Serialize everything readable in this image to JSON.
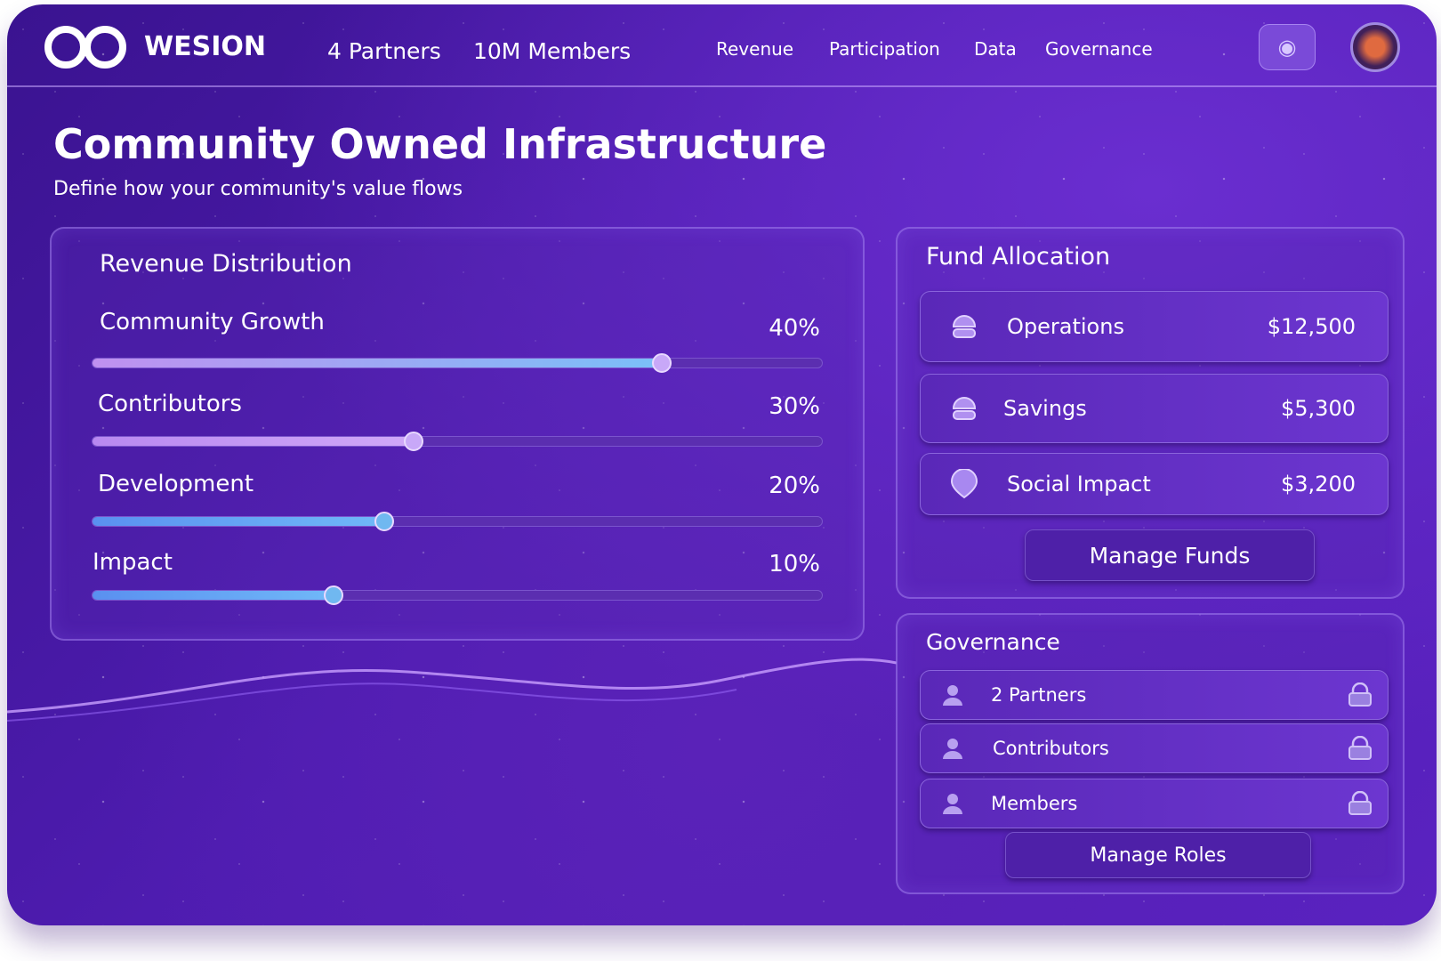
{
  "header": {
    "brand": "WESION",
    "stats": [
      "4 Partners",
      "10M Members"
    ],
    "nav": [
      "Revenue",
      "Participation",
      "Data",
      "Governance"
    ],
    "icons": {
      "action": "lightbulb-icon",
      "avatar": "user-avatar"
    }
  },
  "page": {
    "title": "Community Owned Infrastructure",
    "subtitle": "Define how your community's value flows"
  },
  "revenue": {
    "title": "Revenue Distribution",
    "sliders": [
      {
        "label": "Community Growth",
        "value": "40%",
        "percent": 40
      },
      {
        "label": "Contributors",
        "value": "30%",
        "percent": 30
      },
      {
        "label": "Development",
        "value": "20%",
        "percent": 20
      },
      {
        "label": "Impact",
        "value": "10%",
        "percent": 10
      }
    ]
  },
  "funds": {
    "title": "Fund Allocation",
    "items": [
      {
        "label": "Operations",
        "amount": "$12,500",
        "icon": "coin-stack-icon"
      },
      {
        "label": "Savings",
        "amount": "$5,300",
        "icon": "coin-stack-icon"
      },
      {
        "label": "Social Impact",
        "amount": "$3,200",
        "icon": "globe-icon"
      }
    ],
    "button": "Manage Funds"
  },
  "governance": {
    "title": "Governance",
    "items": [
      {
        "label": "2 Partners",
        "icon": "user-icon"
      },
      {
        "label": "Contributors",
        "icon": "user-icon"
      },
      {
        "label": "Members",
        "icon": "user-icon"
      }
    ],
    "button": "Manage Roles"
  },
  "colors": {
    "accent": "#6c36d0",
    "background": "#4e1cb0",
    "slider_fill_purple": "#b88af0",
    "slider_fill_blue": "#5aa0f0"
  }
}
